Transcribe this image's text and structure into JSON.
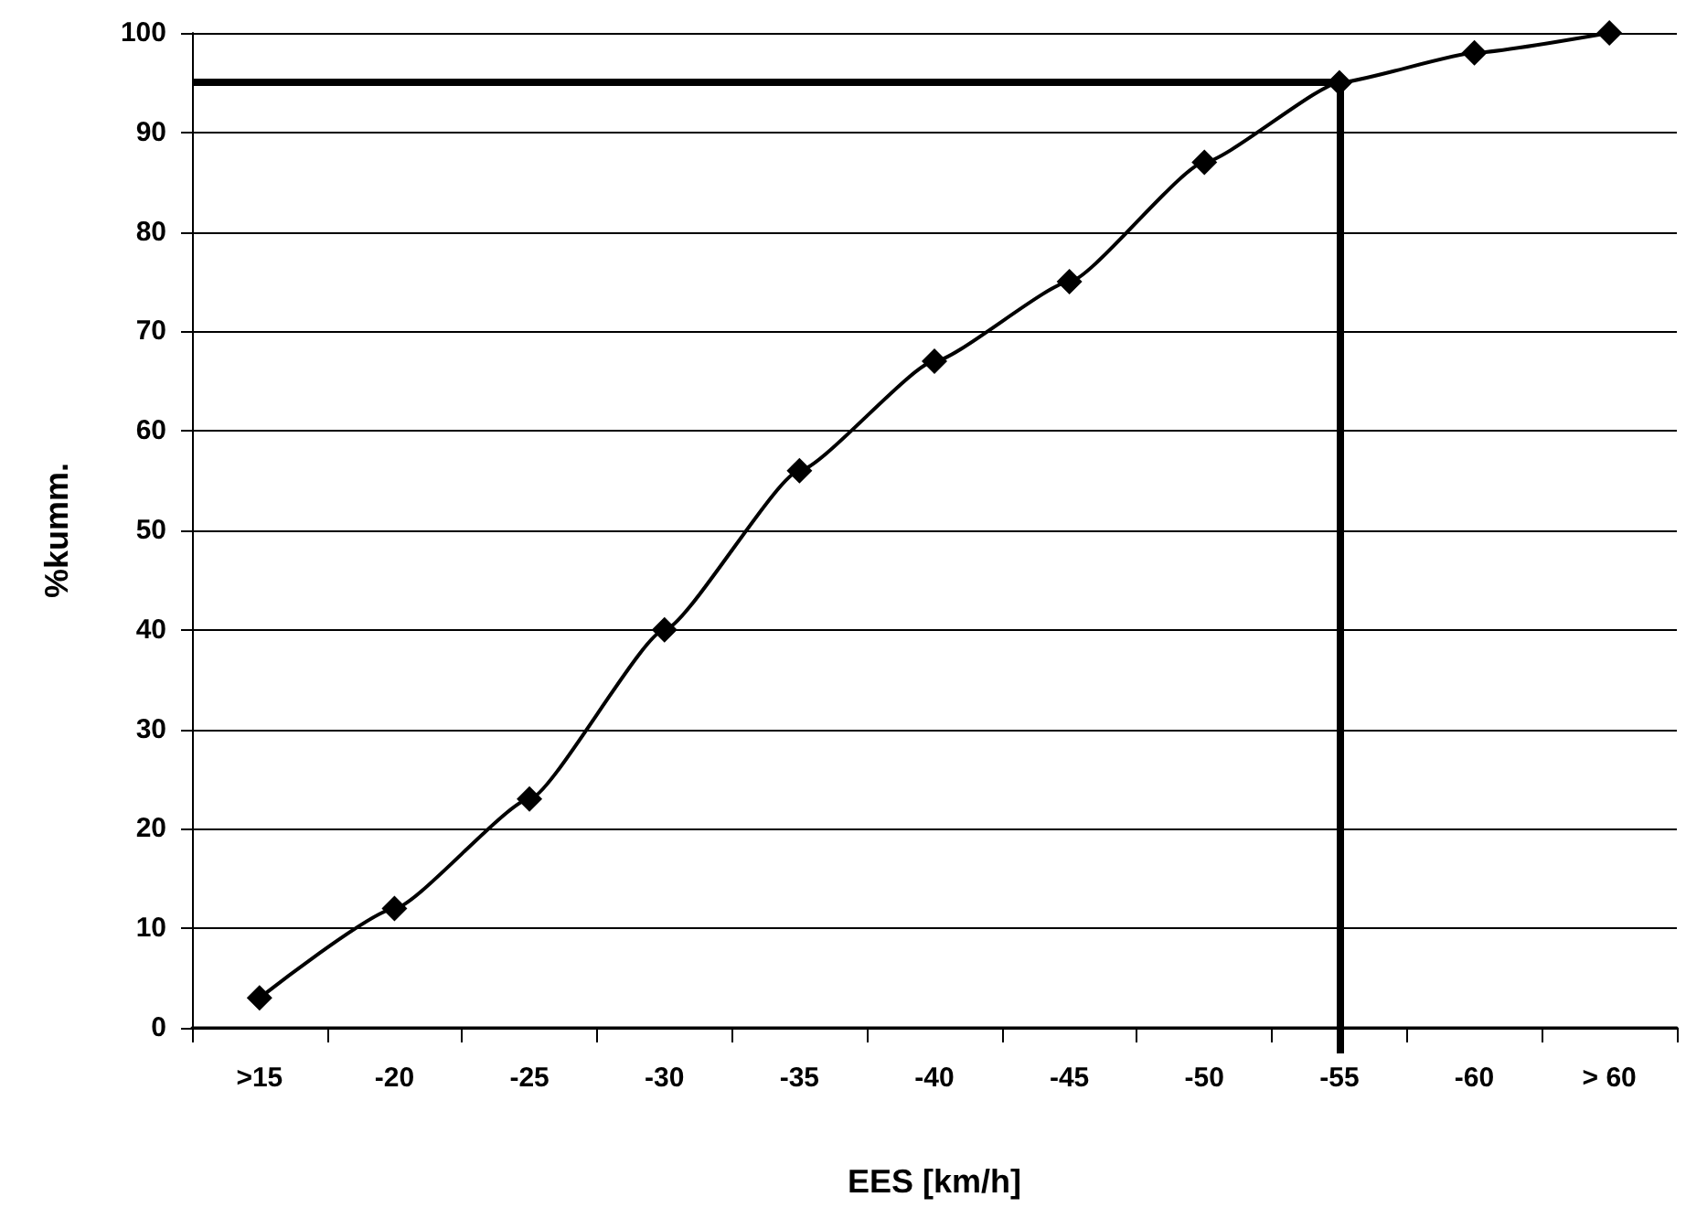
{
  "chart_data": {
    "type": "line",
    "xlabel": "EES [km/h]",
    "ylabel": "%kumm.",
    "categories": [
      ">15",
      "-20",
      "-25",
      "-30",
      "-35",
      "-40",
      "-45",
      "-50",
      "-55",
      "-60",
      "> 60"
    ],
    "series": [
      {
        "color": "#000000",
        "values": [
          3,
          12,
          23,
          40,
          56,
          67,
          75,
          87,
          95,
          98,
          100
        ]
      }
    ],
    "ylim": [
      0,
      100
    ],
    "yticks": [
      0,
      10,
      20,
      30,
      40,
      50,
      60,
      70,
      80,
      90,
      100
    ],
    "grid": "y",
    "marker": "diamond",
    "line_style": "solid",
    "ref_lines": [
      {
        "axis": "y",
        "value": 95,
        "color": "#000000"
      },
      {
        "axis": "x",
        "value": "-55",
        "color": "#000000"
      }
    ]
  }
}
